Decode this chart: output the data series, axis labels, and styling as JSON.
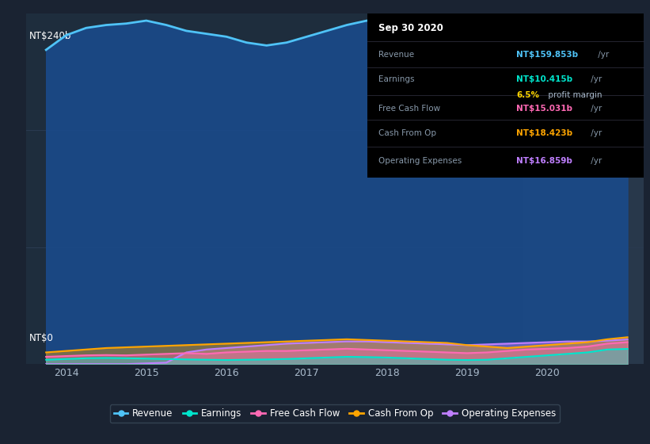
{
  "bg_color": "#1a2332",
  "plot_bg_color": "#1e2d3d",
  "highlight_bg_color": "#2a3a4d",
  "grid_color": "#2a3a50",
  "ylabel_top": "NT$240b",
  "ylabel_bottom": "NT$0",
  "ylim": [
    0,
    240
  ],
  "xlim": [
    2013.5,
    2021.2
  ],
  "x_ticks": [
    2014,
    2015,
    2016,
    2017,
    2018,
    2019,
    2020
  ],
  "highlight_x_start": 2019.7,
  "highlight_x_end": 2021.2,
  "revenue_color": "#4fc3f7",
  "earnings_color": "#00e5cc",
  "fcf_color": "#ff69b4",
  "cashfromop_color": "#ffa500",
  "opex_color": "#bf7fff",
  "revenue_fill_color": "#1a4a8a",
  "legend_items": [
    {
      "label": "Revenue",
      "color": "#4fc3f7"
    },
    {
      "label": "Earnings",
      "color": "#00e5cc"
    },
    {
      "label": "Free Cash Flow",
      "color": "#ff69b4"
    },
    {
      "label": "Cash From Op",
      "color": "#ffa500"
    },
    {
      "label": "Operating Expenses",
      "color": "#bf7fff"
    }
  ],
  "revenue_data": {
    "x": [
      2013.75,
      2014.0,
      2014.25,
      2014.5,
      2014.75,
      2015.0,
      2015.25,
      2015.5,
      2015.75,
      2016.0,
      2016.25,
      2016.5,
      2016.75,
      2017.0,
      2017.25,
      2017.5,
      2017.75,
      2018.0,
      2018.25,
      2018.5,
      2018.75,
      2019.0,
      2019.25,
      2019.5,
      2019.75,
      2020.0,
      2020.25,
      2020.5,
      2020.75,
      2021.0
    ],
    "y": [
      215,
      225,
      230,
      232,
      233,
      235,
      232,
      228,
      226,
      224,
      220,
      218,
      220,
      224,
      228,
      232,
      235,
      232,
      230,
      225,
      218,
      210,
      200,
      188,
      175,
      160,
      148,
      140,
      158,
      160
    ]
  },
  "earnings_data": {
    "x": [
      2013.75,
      2014.0,
      2014.25,
      2014.5,
      2014.75,
      2015.0,
      2015.25,
      2015.5,
      2015.75,
      2016.0,
      2016.25,
      2016.5,
      2016.75,
      2017.0,
      2017.25,
      2017.5,
      2017.75,
      2018.0,
      2018.25,
      2018.5,
      2018.75,
      2019.0,
      2019.25,
      2019.5,
      2019.75,
      2020.0,
      2020.25,
      2020.5,
      2020.75,
      2021.0
    ],
    "y": [
      3,
      3.5,
      4,
      4.2,
      4.0,
      3.8,
      3.5,
      3.2,
      3.0,
      2.8,
      3.0,
      3.2,
      3.5,
      4.0,
      4.5,
      5.0,
      4.8,
      4.5,
      4.0,
      3.5,
      3.0,
      2.8,
      3.0,
      4.0,
      5.0,
      6.0,
      7.0,
      8.0,
      10.0,
      10.4
    ]
  },
  "fcf_data": {
    "x": [
      2013.75,
      2014.0,
      2014.25,
      2014.5,
      2014.75,
      2015.0,
      2015.25,
      2015.5,
      2015.75,
      2016.0,
      2016.25,
      2016.5,
      2016.75,
      2017.0,
      2017.25,
      2017.5,
      2017.75,
      2018.0,
      2018.25,
      2018.5,
      2018.75,
      2019.0,
      2019.25,
      2019.5,
      2019.75,
      2020.0,
      2020.25,
      2020.5,
      2020.75,
      2021.0
    ],
    "y": [
      5,
      5.5,
      6,
      6.2,
      6.0,
      6.5,
      7.0,
      7.5,
      7.0,
      8.0,
      8.5,
      9.0,
      9.0,
      9.5,
      10.0,
      10.5,
      10.0,
      9.5,
      9.0,
      8.5,
      8.0,
      7.5,
      8.0,
      9.0,
      10.0,
      10.5,
      11.0,
      12.0,
      14.0,
      15.0
    ]
  },
  "cashfromop_data": {
    "x": [
      2013.75,
      2014.0,
      2014.25,
      2014.5,
      2014.75,
      2015.0,
      2015.25,
      2015.5,
      2015.75,
      2016.0,
      2016.25,
      2016.5,
      2016.75,
      2017.0,
      2017.25,
      2017.5,
      2017.75,
      2018.0,
      2018.25,
      2018.5,
      2018.75,
      2019.0,
      2019.25,
      2019.5,
      2019.75,
      2020.0,
      2020.25,
      2020.5,
      2020.75,
      2021.0
    ],
    "y": [
      8,
      9,
      10,
      11,
      11.5,
      12,
      12.5,
      13,
      13.5,
      14,
      14.5,
      15,
      15.5,
      16,
      16.5,
      17,
      16.5,
      16,
      15.5,
      15,
      14.5,
      13,
      12,
      11,
      12,
      13,
      14,
      15,
      17,
      18.4
    ]
  },
  "opex_data": {
    "x": [
      2013.75,
      2014.0,
      2014.25,
      2014.5,
      2014.75,
      2015.0,
      2015.25,
      2015.5,
      2015.75,
      2016.0,
      2016.25,
      2016.5,
      2016.75,
      2017.0,
      2017.25,
      2017.5,
      2017.75,
      2018.0,
      2018.25,
      2018.5,
      2018.75,
      2019.0,
      2019.25,
      2019.5,
      2019.75,
      2020.0,
      2020.25,
      2020.5,
      2020.75,
      2021.0
    ],
    "y": [
      0,
      0,
      0,
      0,
      0,
      0.5,
      1.0,
      8.0,
      10.0,
      11.0,
      12.0,
      13.0,
      14.0,
      14.5,
      15.0,
      15.5,
      15.5,
      15.0,
      14.5,
      14.0,
      13.5,
      13.0,
      13.5,
      14.0,
      14.5,
      15.0,
      15.5,
      15.5,
      16.0,
      16.9
    ]
  },
  "info_box": {
    "date": "Sep 30 2020",
    "rows": [
      {
        "label": "Revenue",
        "value": "NT$159.853b",
        "suffix": " /yr",
        "value_color": "#4fc3f7",
        "has_sub": false
      },
      {
        "label": "Earnings",
        "value": "NT$10.415b",
        "suffix": " /yr",
        "value_color": "#00e5cc",
        "has_sub": true,
        "sub_bold": "6.5%",
        "sub_rest": " profit margin"
      },
      {
        "label": "Free Cash Flow",
        "value": "NT$15.031b",
        "suffix": " /yr",
        "value_color": "#ff69b4",
        "has_sub": false
      },
      {
        "label": "Cash From Op",
        "value": "NT$18.423b",
        "suffix": " /yr",
        "value_color": "#ffa500",
        "has_sub": false
      },
      {
        "label": "Operating Expenses",
        "value": "NT$16.859b",
        "suffix": " /yr",
        "value_color": "#bf7fff",
        "has_sub": false
      }
    ],
    "sep_color": "#333344",
    "label_color": "#8899aa",
    "suffix_color": "#8899aa",
    "sub_bold_color": "#ffd700",
    "sub_rest_color": "#aabbcc",
    "bg_color": "#000000",
    "title_color": "#ffffff"
  }
}
